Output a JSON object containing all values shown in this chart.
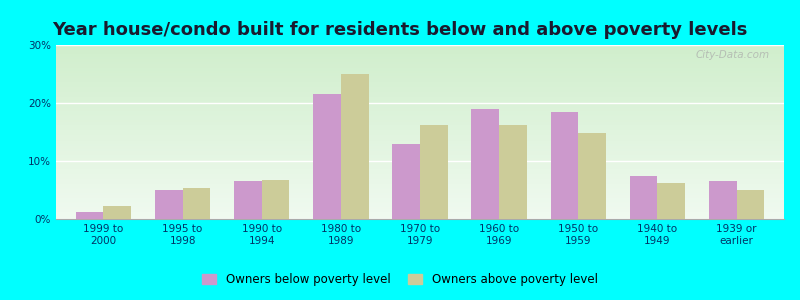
{
  "title": "Year house/condo built for residents below and above poverty levels",
  "categories": [
    "1999 to\n2000",
    "1995 to\n1998",
    "1990 to\n1994",
    "1980 to\n1989",
    "1970 to\n1979",
    "1960 to\n1969",
    "1950 to\n1959",
    "1940 to\n1949",
    "1939 or\nearlier"
  ],
  "below_poverty": [
    1.2,
    5.0,
    6.5,
    21.5,
    13.0,
    19.0,
    18.5,
    7.5,
    6.5
  ],
  "above_poverty": [
    2.2,
    5.3,
    6.8,
    25.0,
    16.2,
    16.2,
    14.8,
    6.2,
    5.0
  ],
  "below_color": "#cc99cc",
  "above_color": "#cccc99",
  "background_color": "#00ffff",
  "plot_bg_top_color": "#d0eecc",
  "plot_bg_bottom_color": "#f0faf0",
  "ylim": [
    0,
    30
  ],
  "yticks": [
    0,
    10,
    20,
    30
  ],
  "ytick_labels": [
    "0%",
    "10%",
    "20%",
    "30%"
  ],
  "bar_width": 0.35,
  "legend_below_label": "Owners below poverty level",
  "legend_above_label": "Owners above poverty level",
  "title_fontsize": 13,
  "tick_fontsize": 7.5,
  "legend_fontsize": 8.5,
  "tick_color": "#003366",
  "watermark": "City-Data.com"
}
